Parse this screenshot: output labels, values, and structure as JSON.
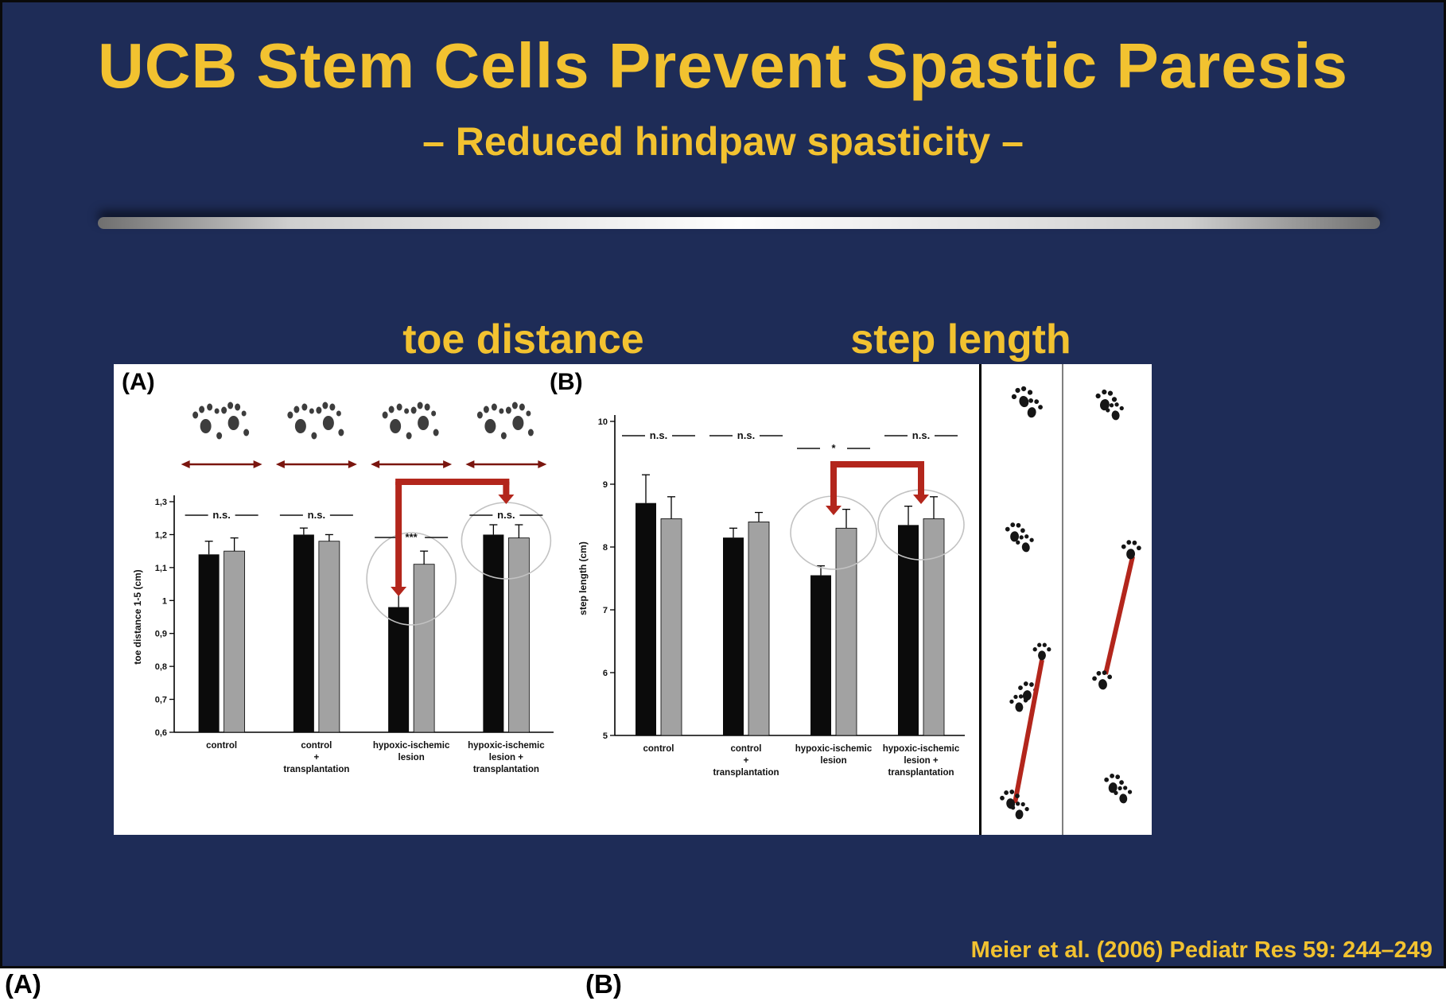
{
  "slide": {
    "title": "UCB Stem Cells Prevent Spastic Paresis",
    "subtitle": "– Reduced hindpaw spasticity –",
    "citation": "Meier et al. (2006) Pediatr Res 59: 244–249",
    "colors": {
      "background": "#1e2c57",
      "accent_yellow": "#f2c230",
      "accent_red": "#b3261c",
      "bar_black": "#0b0b0b",
      "bar_gray": "#a2a2a2"
    }
  },
  "bottom_labels": {
    "a": "(A)",
    "b": "(B)"
  },
  "chart_data": [
    {
      "type": "bar",
      "panel": "(A)",
      "title": "toe distance",
      "ylabel": "toe distance 1-5 (cm)",
      "ylim": [
        0.6,
        1.3
      ],
      "yticks": [
        "1,3",
        "1,2",
        "1,1",
        "1",
        "0,9",
        "0,8",
        "0,7",
        "0,6"
      ],
      "ytick_values": [
        1.3,
        1.2,
        1.1,
        1.0,
        0.9,
        0.8,
        0.7,
        0.6
      ],
      "categories": [
        "control",
        "control + transplantation",
        "hypoxic-ischemic lesion",
        "hypoxic-ischemic lesion + transplantation"
      ],
      "category_lines": [
        [
          "control"
        ],
        [
          "control",
          "+",
          "transplantation"
        ],
        [
          "hypoxic-ischemic",
          "lesion"
        ],
        [
          "hypoxic-ischemic",
          "lesion +",
          "transplantation"
        ]
      ],
      "series": [
        {
          "name": "black",
          "color": "#0b0b0b",
          "values": [
            1.14,
            1.2,
            0.98,
            1.2
          ],
          "errors": [
            0.04,
            0.02,
            0.05,
            0.03
          ]
        },
        {
          "name": "gray",
          "color": "#a2a2a2",
          "values": [
            1.15,
            1.18,
            1.11,
            1.19
          ],
          "errors": [
            0.04,
            0.02,
            0.04,
            0.04
          ]
        }
      ],
      "significance": [
        "n.s.",
        "n.s.",
        "***",
        "n.s."
      ],
      "accent_color": "#b3261c",
      "grid": false,
      "legend": false
    },
    {
      "type": "bar",
      "panel": "(B)",
      "title": "step length",
      "ylabel": "step length (cm)",
      "ylim": [
        5,
        10
      ],
      "yticks": [
        "10",
        "9",
        "8",
        "7",
        "6",
        "5"
      ],
      "ytick_values": [
        10,
        9,
        8,
        7,
        6,
        5
      ],
      "categories": [
        "control",
        "control + transplantation",
        "hypoxic-ischemic lesion",
        "hypoxic-ischemic lesion + transplantation"
      ],
      "category_lines": [
        [
          "control"
        ],
        [
          "control",
          "+",
          "transplantation"
        ],
        [
          "hypoxic-ischemic",
          "lesion"
        ],
        [
          "hypoxic-ischemic",
          "lesion +",
          "transplantation"
        ]
      ],
      "series": [
        {
          "name": "black",
          "color": "#0b0b0b",
          "values": [
            8.7,
            8.15,
            7.55,
            8.35
          ],
          "errors": [
            0.45,
            0.15,
            0.15,
            0.3
          ]
        },
        {
          "name": "gray",
          "color": "#a2a2a2",
          "values": [
            8.45,
            8.4,
            8.3,
            8.45
          ],
          "errors": [
            0.35,
            0.15,
            0.3,
            0.35
          ]
        }
      ],
      "significance": [
        "n.s.",
        "n.s.",
        "*",
        "n.s."
      ],
      "accent_color": "#b3261c",
      "grid": false,
      "legend": false
    }
  ]
}
